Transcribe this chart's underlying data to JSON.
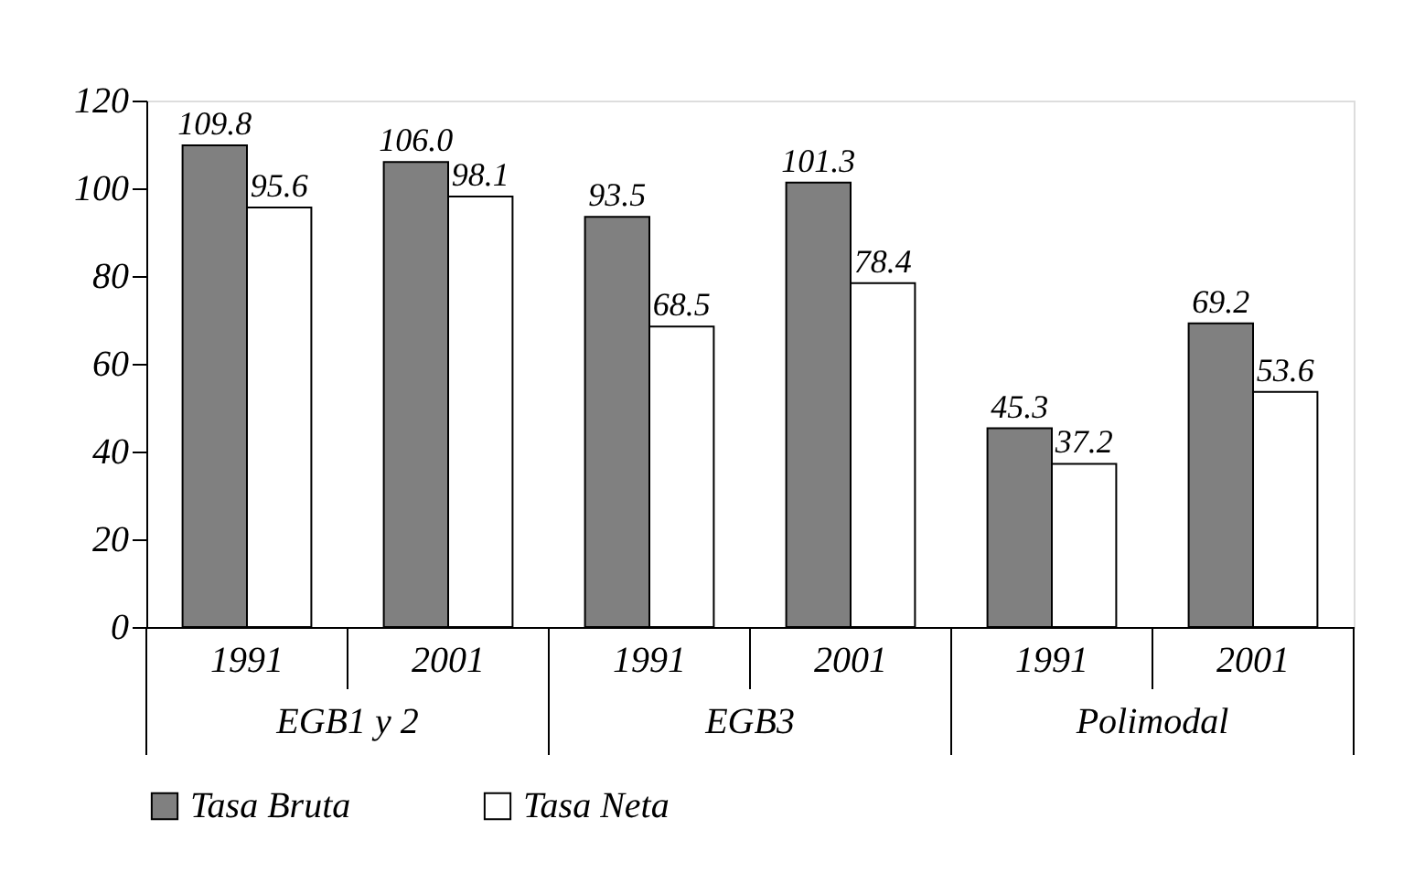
{
  "chart_data": {
    "type": "bar",
    "categories": [
      "1991",
      "2001",
      "1991",
      "2001",
      "1991",
      "2001"
    ],
    "series": [
      {
        "name": "Tasa Bruta",
        "color": "#808080",
        "values": [
          109.8,
          106.0,
          93.5,
          101.3,
          45.3,
          69.2
        ],
        "value_labels": [
          "109.8",
          "106.0",
          "93.5",
          "101.3",
          "45.3",
          "69.2"
        ]
      },
      {
        "name": "Tasa Neta",
        "color": "#ffffff",
        "values": [
          95.6,
          98.1,
          68.5,
          78.4,
          37.2,
          53.6
        ],
        "value_labels": [
          "95.6",
          "98.1",
          "68.5",
          "78.4",
          "37.2",
          "53.6"
        ]
      }
    ],
    "annotations": [
      "EGB1 y 2",
      "EGB3",
      "Polimodal"
    ],
    "ylim": [
      0,
      120
    ],
    "yticks": [
      0,
      20,
      40,
      60,
      80,
      100,
      120
    ],
    "grid": false,
    "legend": "bottom"
  }
}
